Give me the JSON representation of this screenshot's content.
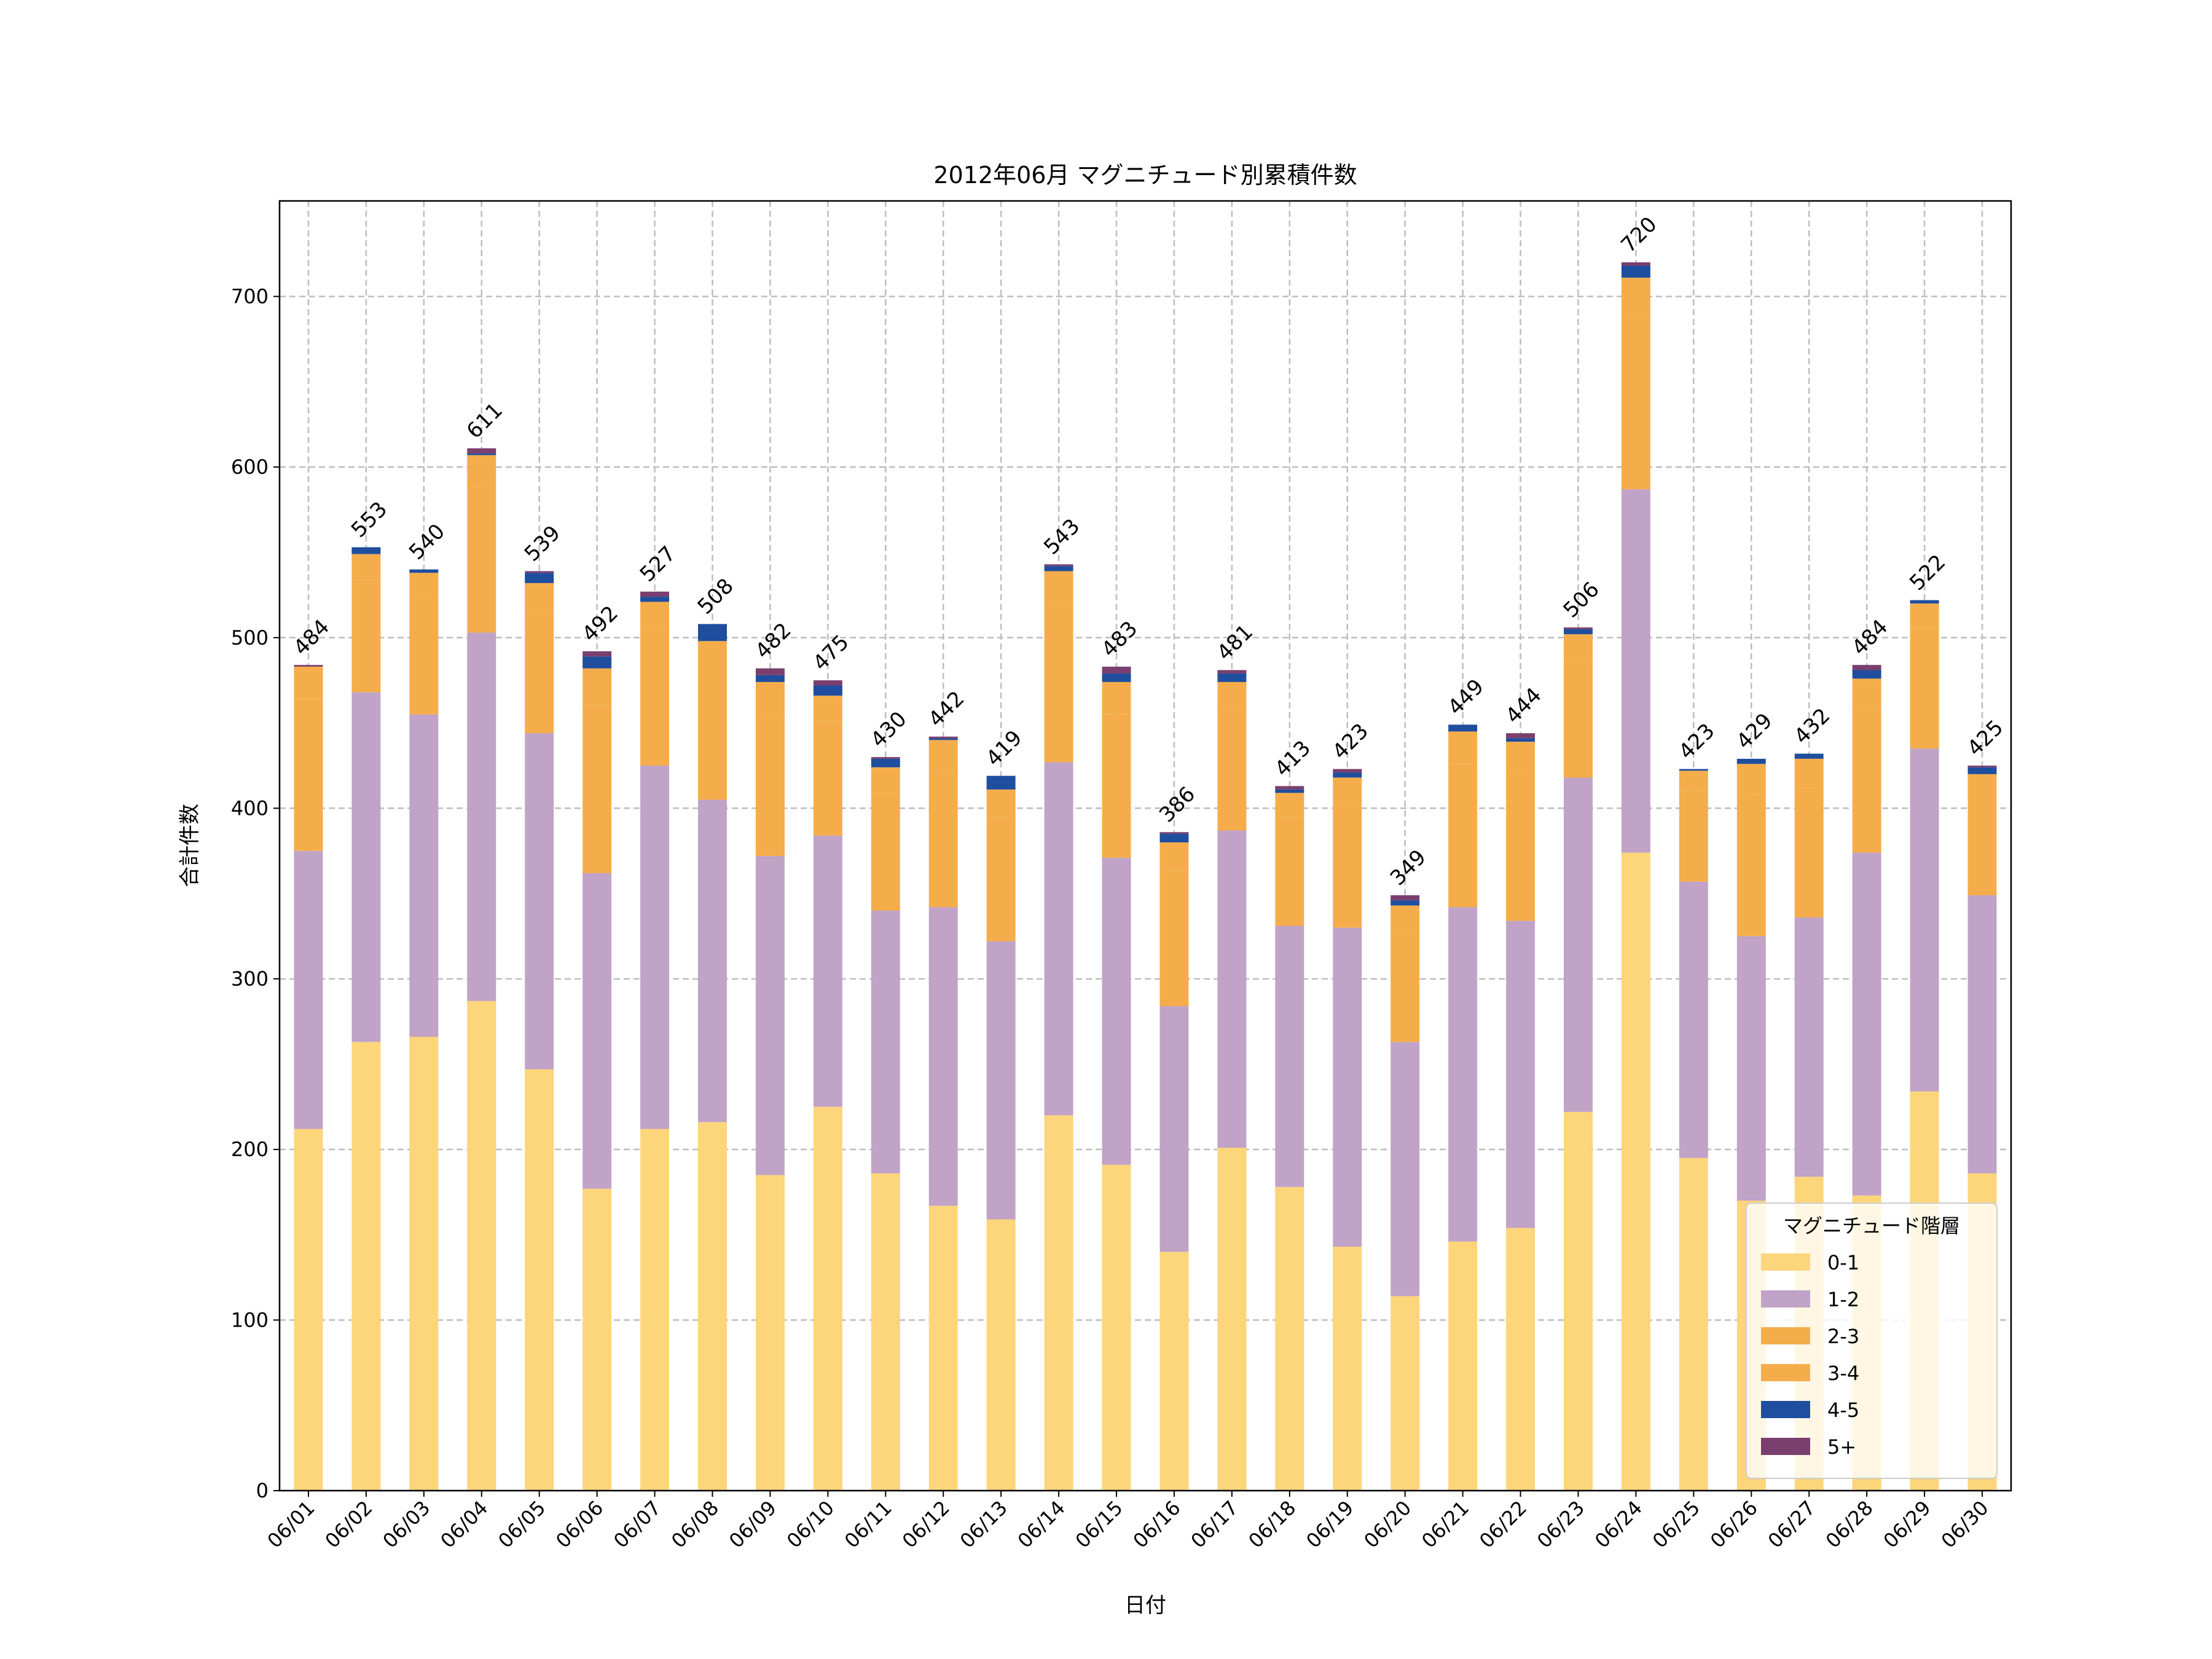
{
  "chart_data": {
    "type": "bar",
    "stacked": true,
    "title": "2012年06月 マグニチュード別累積件数",
    "xlabel": "日付",
    "ylabel": "合計件数",
    "ylim": [
      0,
      756
    ],
    "yticks": [
      0,
      100,
      200,
      300,
      400,
      500,
      600,
      700
    ],
    "grid": true,
    "legend": {
      "title": "マグニチュード階層",
      "placement": "bottom-right"
    },
    "categories": [
      "06/01",
      "06/02",
      "06/03",
      "06/04",
      "06/05",
      "06/06",
      "06/07",
      "06/08",
      "06/09",
      "06/10",
      "06/11",
      "06/12",
      "06/13",
      "06/14",
      "06/15",
      "06/16",
      "06/17",
      "06/18",
      "06/19",
      "06/20",
      "06/21",
      "06/22",
      "06/23",
      "06/24",
      "06/25",
      "06/26",
      "06/27",
      "06/28",
      "06/29",
      "06/30"
    ],
    "series": [
      {
        "name": "0-1",
        "color": "#FDD57A",
        "values": [
          212,
          263,
          266,
          287,
          247,
          177,
          212,
          216,
          185,
          225,
          186,
          167,
          159,
          220,
          191,
          140,
          201,
          178,
          143,
          114,
          146,
          154,
          222,
          374,
          195,
          170,
          184,
          173,
          234,
          186
        ]
      },
      {
        "name": "1-2",
        "color": "#C0A3C7",
        "values": [
          163,
          205,
          189,
          216,
          197,
          185,
          213,
          189,
          187,
          159,
          154,
          175,
          163,
          207,
          180,
          144,
          186,
          153,
          187,
          149,
          196,
          180,
          196,
          213,
          162,
          155,
          152,
          201,
          201,
          163
        ]
      },
      {
        "name": "2-3",
        "color": "#F5AD4B",
        "values": [
          89,
          66,
          68,
          85,
          72,
          98,
          79,
          76,
          84,
          67,
          69,
          80,
          73,
          92,
          84,
          79,
          71,
          64,
          72,
          66,
          84,
          86,
          69,
          102,
          53,
          83,
          76,
          84,
          70,
          58
        ]
      },
      {
        "name": "3-4",
        "color": "#F5AD4B",
        "values": [
          19,
          15,
          15,
          19,
          16,
          22,
          17,
          17,
          18,
          15,
          15,
          18,
          16,
          20,
          19,
          17,
          16,
          14,
          16,
          14,
          19,
          19,
          15,
          22,
          12,
          18,
          17,
          18,
          15,
          13
        ]
      },
      {
        "name": "4-5",
        "color": "#1F4E9E",
        "values": [
          0,
          4,
          2,
          1,
          6,
          7,
          3,
          10,
          4,
          6,
          5,
          1,
          8,
          3,
          5,
          5,
          5,
          2,
          3,
          3,
          4,
          2,
          3,
          7,
          1,
          3,
          3,
          5,
          2,
          4
        ]
      },
      {
        "name": "5+",
        "color": "#7A3F6E",
        "values": [
          1,
          0,
          0,
          3,
          1,
          3,
          3,
          0,
          4,
          3,
          1,
          1,
          0,
          1,
          4,
          1,
          2,
          2,
          2,
          3,
          0,
          3,
          1,
          2,
          0,
          0,
          0,
          3,
          0,
          1
        ]
      }
    ],
    "totals": [
      "484",
      "553",
      "540",
      "611",
      "539",
      "492",
      "527",
      "508",
      "482",
      "475",
      "430",
      "442",
      "419",
      "543",
      "483",
      "386",
      "481",
      "413",
      "423",
      "349",
      "449",
      "444",
      "506",
      "720",
      "423",
      "429",
      "432",
      "484",
      "522",
      "425"
    ]
  }
}
